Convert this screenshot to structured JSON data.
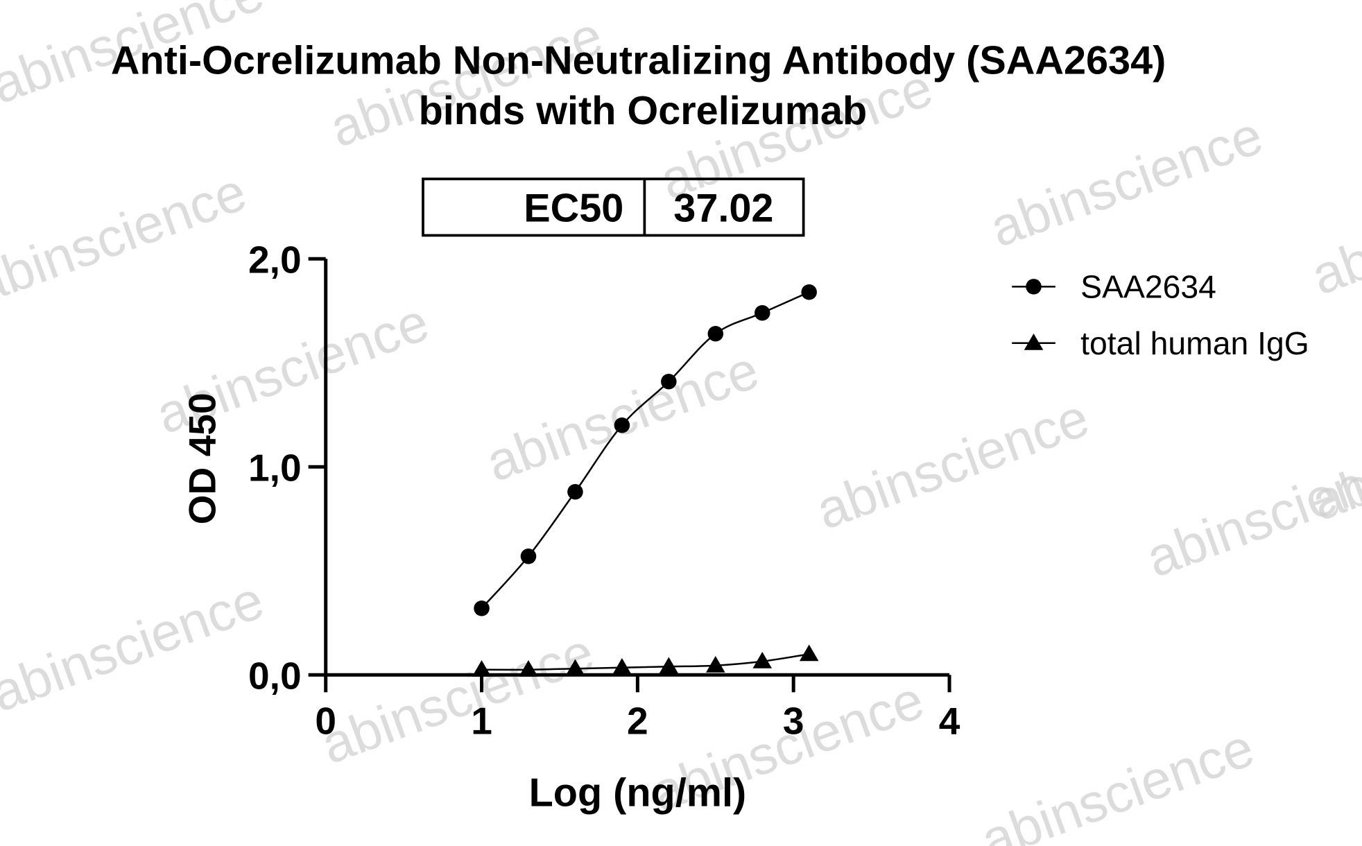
{
  "chart_data": {
    "type": "line",
    "title": "Anti-Ocrelizumab Non-Neutralizing Antibody (SAA2634)",
    "subtitle": "binds with Ocrelizumab",
    "xlabel": "Log (ng/ml)",
    "ylabel": "OD 450",
    "table": {
      "header": "EC50",
      "value": "37.02"
    },
    "watermark": "abinscience",
    "x": [
      1,
      1.3,
      1.6,
      1.9,
      2.2,
      2.5,
      2.8,
      3.1
    ],
    "series": [
      {
        "name": "SAA2634",
        "color": "#000000",
        "marker": "circle",
        "values": [
          0.32,
          0.57,
          0.88,
          1.2,
          1.41,
          1.64,
          1.74,
          1.84
        ]
      },
      {
        "name": "total human IgG",
        "color": "#000000",
        "marker": "triangle",
        "values": [
          0.025,
          0.025,
          0.03,
          0.035,
          0.04,
          0.045,
          0.065,
          0.1
        ]
      }
    ],
    "xlim": [
      0,
      4
    ],
    "xticks": [
      0,
      1,
      2,
      3,
      4
    ],
    "ylim": [
      0,
      2
    ],
    "yticks": [
      {
        "value": 0,
        "label": "0,0"
      },
      {
        "value": 1,
        "label": "1,0"
      },
      {
        "value": 2,
        "label": "2,0"
      }
    ],
    "legend": "right"
  }
}
